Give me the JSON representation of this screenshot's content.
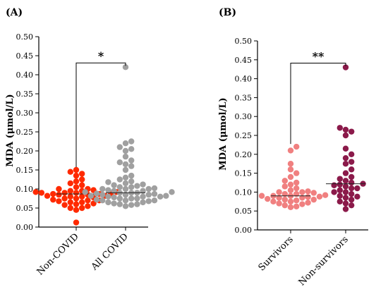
{
  "chart_data": [
    {
      "type": "scatter",
      "panel_label": "(A)",
      "ylabel": "MDA (μmol/L)",
      "ylim": [
        0,
        0.5
      ],
      "yticks": [
        "0.00",
        "0.05",
        "0.10",
        "0.15",
        "0.20",
        "0.25",
        "0.30",
        "0.35",
        "0.40",
        "0.45",
        "0.50"
      ],
      "categories": [
        "Non-COVID",
        "All COVID"
      ],
      "series": [
        {
          "name": "Non-COVID",
          "color": "#ff2a00",
          "median": 0.087,
          "values": [
            0.012,
            0.045,
            0.05,
            0.05,
            0.055,
            0.058,
            0.06,
            0.062,
            0.065,
            0.065,
            0.068,
            0.07,
            0.07,
            0.072,
            0.075,
            0.075,
            0.078,
            0.08,
            0.08,
            0.082,
            0.082,
            0.085,
            0.085,
            0.087,
            0.087,
            0.088,
            0.09,
            0.09,
            0.09,
            0.092,
            0.092,
            0.095,
            0.095,
            0.097,
            0.1,
            0.1,
            0.105,
            0.11,
            0.115,
            0.12,
            0.125,
            0.135,
            0.14,
            0.145,
            0.15
          ]
        },
        {
          "name": "All COVID",
          "color": "#a0a0a0",
          "median": 0.09,
          "values": [
            0.055,
            0.058,
            0.06,
            0.06,
            0.062,
            0.065,
            0.065,
            0.068,
            0.07,
            0.07,
            0.07,
            0.072,
            0.075,
            0.075,
            0.075,
            0.078,
            0.08,
            0.08,
            0.08,
            0.082,
            0.082,
            0.085,
            0.085,
            0.085,
            0.087,
            0.088,
            0.09,
            0.09,
            0.09,
            0.092,
            0.092,
            0.095,
            0.095,
            0.097,
            0.1,
            0.1,
            0.1,
            0.102,
            0.105,
            0.105,
            0.108,
            0.11,
            0.112,
            0.115,
            0.118,
            0.12,
            0.125,
            0.13,
            0.135,
            0.15,
            0.16,
            0.165,
            0.17,
            0.175,
            0.185,
            0.2,
            0.205,
            0.21,
            0.22,
            0.225,
            0.42
          ]
        }
      ],
      "significance": "*"
    },
    {
      "type": "scatter",
      "panel_label": "(B)",
      "ylabel": "MDA (μmol/L)",
      "ylim": [
        0,
        0.5
      ],
      "yticks": [
        "0.00",
        "0.05",
        "0.10",
        "0.15",
        "0.20",
        "0.25",
        "0.30",
        "0.35",
        "0.40",
        "0.45",
        "0.50"
      ],
      "categories": [
        "Survivors",
        "Non-survivors"
      ],
      "series": [
        {
          "name": "Survivors",
          "color": "#f08080",
          "median": 0.09,
          "values": [
            0.06,
            0.062,
            0.065,
            0.068,
            0.07,
            0.072,
            0.075,
            0.075,
            0.078,
            0.08,
            0.08,
            0.082,
            0.085,
            0.085,
            0.087,
            0.088,
            0.09,
            0.09,
            0.09,
            0.092,
            0.095,
            0.095,
            0.098,
            0.1,
            0.1,
            0.102,
            0.105,
            0.11,
            0.115,
            0.12,
            0.125,
            0.13,
            0.14,
            0.15,
            0.16,
            0.175,
            0.21,
            0.22
          ]
        },
        {
          "name": "Non-survivors",
          "color": "#8b1a4a",
          "median": 0.122,
          "values": [
            0.055,
            0.065,
            0.07,
            0.075,
            0.08,
            0.085,
            0.088,
            0.09,
            0.095,
            0.1,
            0.1,
            0.105,
            0.11,
            0.11,
            0.115,
            0.118,
            0.12,
            0.122,
            0.125,
            0.13,
            0.135,
            0.14,
            0.15,
            0.16,
            0.175,
            0.18,
            0.19,
            0.2,
            0.215,
            0.25,
            0.26,
            0.265,
            0.27,
            0.43
          ]
        }
      ],
      "significance": "**"
    }
  ]
}
